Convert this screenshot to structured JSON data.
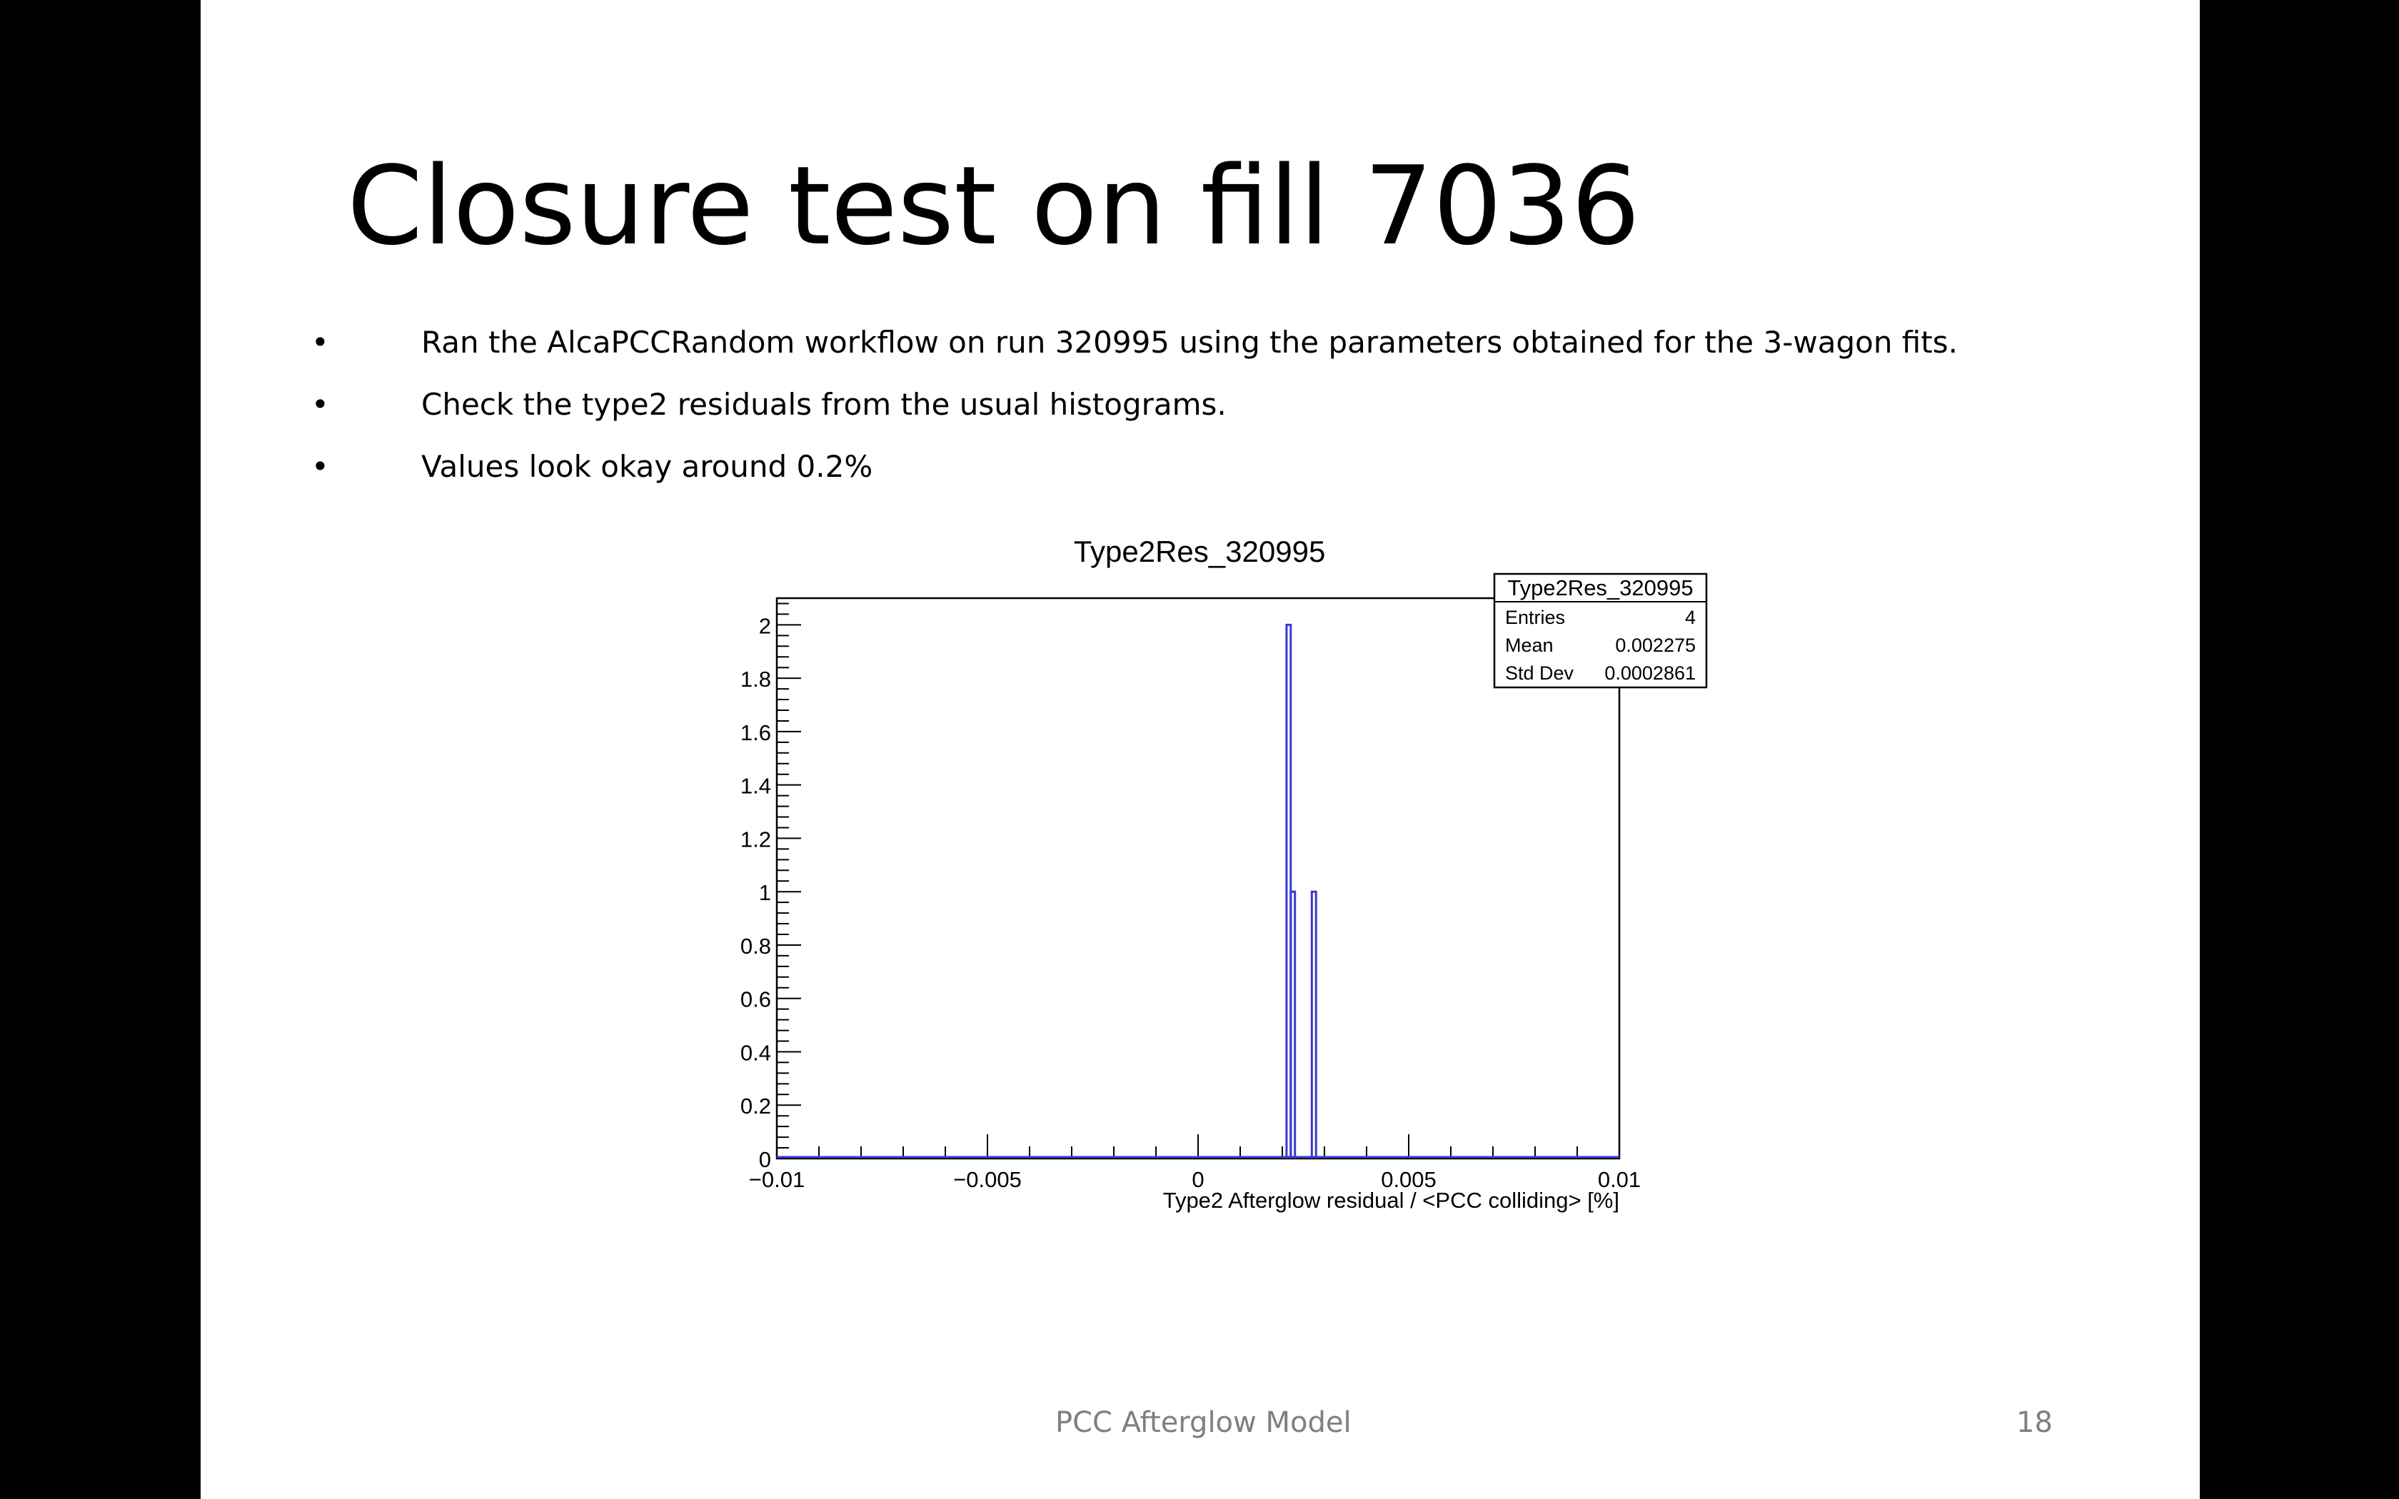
{
  "slide": {
    "title": "Closure test on fill 7036",
    "bullets": [
      "Ran the AlcaPCCRandom workflow on run 320995 using the parameters obtained for the 3-wagon fits.",
      "Check the type2 residuals from the usual histograms.",
      "Values look okay around 0.2%"
    ],
    "bullet_marker": "•",
    "footer_text": "PCC Afterglow Model",
    "page_number": "18"
  },
  "chart_data": {
    "type": "bar",
    "title": "Type2Res_320995",
    "xlabel": "Type2 Afterglow residual / <PCC colliding>  [%]",
    "ylabel": "",
    "xlim": [
      -0.01,
      0.01
    ],
    "ylim": [
      0,
      2.1
    ],
    "x_ticks": [
      -0.01,
      -0.005,
      0,
      0.005,
      0.01
    ],
    "x_tick_labels": [
      "−0.01",
      "−0.005",
      "0",
      "0.005",
      "0.01"
    ],
    "y_ticks": [
      0,
      0.2,
      0.4,
      0.6,
      0.8,
      1,
      1.2,
      1.4,
      1.6,
      1.8,
      2
    ],
    "y_tick_labels": [
      "0",
      "0.2",
      "0.4",
      "0.6",
      "0.8",
      "1",
      "1.2",
      "1.4",
      "1.6",
      "1.8",
      "2"
    ],
    "bins": [
      {
        "x_low": 0.0021,
        "x_high": 0.0022,
        "value": 2
      },
      {
        "x_low": 0.0022,
        "x_high": 0.0023,
        "value": 1
      },
      {
        "x_low": 0.0027,
        "x_high": 0.0028,
        "value": 1
      }
    ],
    "line_color": "#3a3ad0",
    "grid": false,
    "stats_box": {
      "name": "Type2Res_320995",
      "rows": [
        {
          "label": "Entries",
          "value": "4"
        },
        {
          "label": "Mean",
          "value": "0.002275"
        },
        {
          "label": "Std Dev",
          "value": "0.0002861"
        }
      ]
    }
  }
}
